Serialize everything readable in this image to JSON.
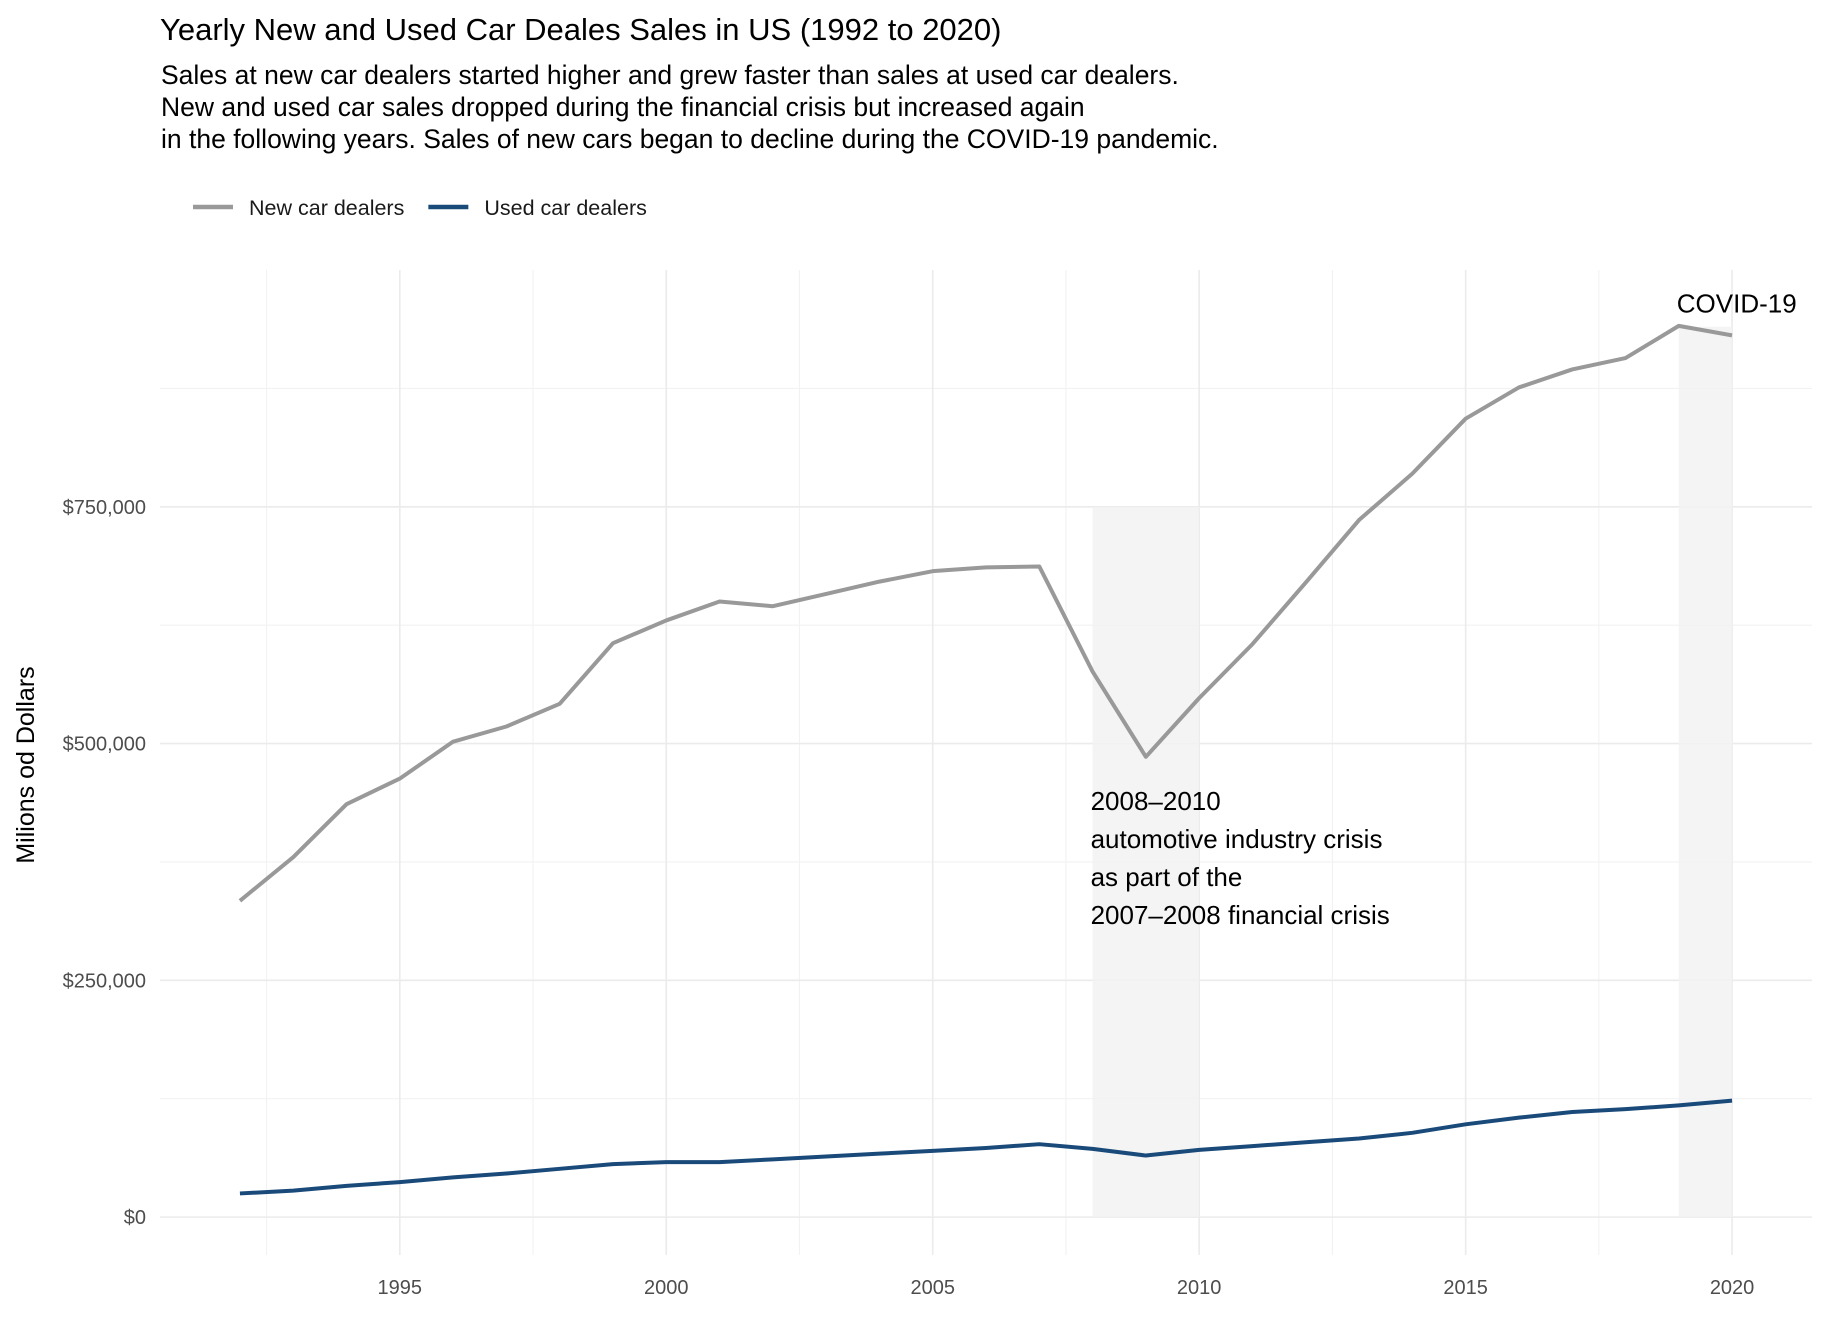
{
  "title": "Yearly New and Used Car Deales Sales in US (1992 to 2020)",
  "subtitle_lines": [
    "Sales at new car dealers started higher and grew faster than sales at used car dealers.",
    "New and used car sales dropped during the financial crisis but increased again",
    "in the following years. Sales of new cars began to decline during the COVID-19 pandemic."
  ],
  "chart_data": {
    "type": "line",
    "xlabel": "",
    "ylabel": "Milions od Dollars",
    "xlim": [
      1990.5,
      2021.5
    ],
    "ylim": [
      -40000,
      1000000
    ],
    "x_ticks": [
      1995,
      2000,
      2005,
      2010,
      2015,
      2020
    ],
    "y_ticks": [
      0,
      250000,
      500000,
      750000
    ],
    "y_tick_labels": [
      "$0",
      "$250,000",
      "$500,000",
      "$750,000"
    ],
    "grid": true,
    "legend_position": "top-left",
    "x": [
      1992,
      1993,
      1994,
      1995,
      1996,
      1997,
      1998,
      1999,
      2000,
      2001,
      2002,
      2003,
      2004,
      2005,
      2006,
      2007,
      2008,
      2009,
      2010,
      2011,
      2012,
      2013,
      2014,
      2015,
      2016,
      2017,
      2018,
      2019,
      2020
    ],
    "series": [
      {
        "name": "New car dealers",
        "color": "#999999",
        "values": [
          334000,
          380000,
          436000,
          463000,
          502000,
          518000,
          542000,
          606000,
          630000,
          650000,
          645000,
          658000,
          671000,
          682000,
          686000,
          687000,
          576000,
          486000,
          548000,
          605000,
          670000,
          736000,
          785000,
          843000,
          876000,
          895000,
          907000,
          941000,
          931000
        ]
      },
      {
        "name": "Used car dealers",
        "color": "#1a4a7a",
        "values": [
          25000,
          28000,
          33000,
          37000,
          42000,
          46000,
          51000,
          56000,
          58000,
          58000,
          61000,
          64000,
          67000,
          70000,
          73000,
          77000,
          72000,
          65000,
          71000,
          75000,
          79000,
          83000,
          89000,
          98000,
          105000,
          111000,
          114000,
          118000,
          123000
        ]
      }
    ],
    "shaded_regions": [
      {
        "x": [
          2008,
          2010
        ],
        "y": [
          0,
          750000
        ],
        "color": "#f2f2f2"
      },
      {
        "x": [
          2019,
          2020
        ],
        "y": [
          0,
          940000
        ],
        "color": "#f2f2f2"
      }
    ],
    "annotations": [
      {
        "lines": [
          "2008–2010",
          "automotive industry crisis",
          "as part of the",
          "2007–2008 financial crisis"
        ],
        "x": 2008,
        "y": 430000
      },
      {
        "lines": [
          "COVID-19"
        ],
        "x": 2019,
        "y": 955000
      }
    ]
  }
}
